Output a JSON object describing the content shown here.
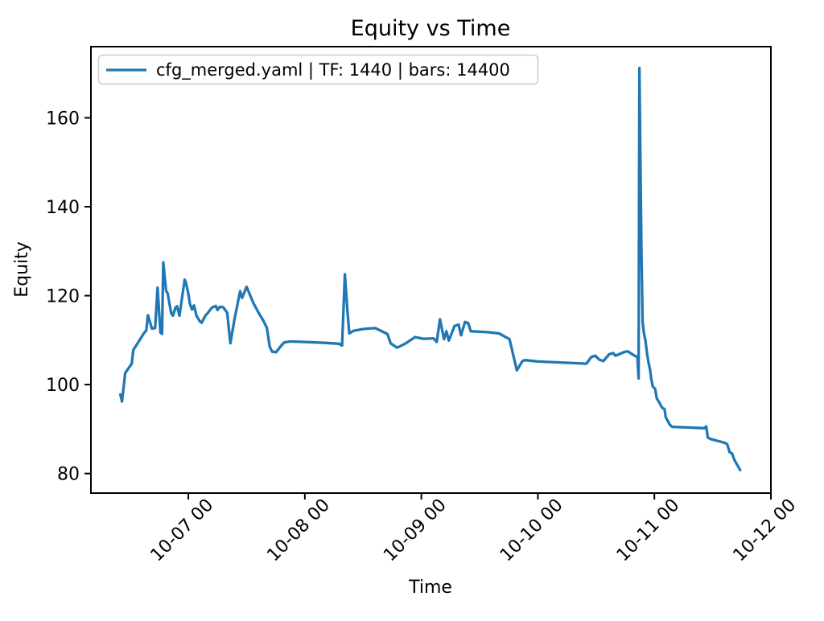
{
  "chart_data": {
    "type": "line",
    "title": "Equity vs Time",
    "xlabel": "Time",
    "ylabel": "Equity",
    "grid": false,
    "legend_position": "upper left",
    "line_color": "#1f77b4",
    "axis_color": "#000000",
    "legend_edge_color": "#cccccc",
    "background_color": "#ffffff",
    "y_ticks": [
      80,
      100,
      120,
      140,
      160
    ],
    "x_ticks": [
      {
        "t": 0,
        "label": "10-07 00"
      },
      {
        "t": 1,
        "label": "10-08 00"
      },
      {
        "t": 2,
        "label": "10-09 00"
      },
      {
        "t": 3,
        "label": "10-10 00"
      },
      {
        "t": 4,
        "label": "10-11 00"
      },
      {
        "t": 5,
        "label": "10-12 00"
      }
    ],
    "x_origin": "10-07 00:00",
    "xlim_days_from_origin": [
      -0.836,
      5.0
    ],
    "ylim": [
      75.6,
      176.0
    ],
    "series": [
      {
        "name": "cfg_merged.yaml | TF: 1440 | bars: 14400",
        "points": [
          [
            "10-06 10:00",
            97.8
          ],
          [
            "10-06 10:20",
            96.2
          ],
          [
            "10-06 11:00",
            102.6
          ],
          [
            "10-06 12:20",
            104.7
          ],
          [
            "10-06 12:40",
            107.8
          ],
          [
            "10-06 14:15",
            110.5
          ],
          [
            "10-06 14:50",
            111.5
          ],
          [
            "10-06 15:20",
            112.2
          ],
          [
            "10-06 15:40",
            115.6
          ],
          [
            "10-06 16:30",
            112.6
          ],
          [
            "10-06 17:10",
            112.7
          ],
          [
            "10-06 17:40",
            121.8
          ],
          [
            "10-06 18:15",
            111.7
          ],
          [
            "10-06 18:35",
            111.4
          ],
          [
            "10-06 18:50",
            127.5
          ],
          [
            "10-06 19:25",
            121.1
          ],
          [
            "10-06 19:45",
            120.5
          ],
          [
            "10-06 20:05",
            118.4
          ],
          [
            "10-06 20:30",
            116.0
          ],
          [
            "10-06 20:50",
            115.5
          ],
          [
            "10-06 21:20",
            117.3
          ],
          [
            "10-06 21:40",
            117.6
          ],
          [
            "10-06 22:10",
            115.5
          ],
          [
            "10-06 23:15",
            123.6
          ],
          [
            "10-06 23:30",
            123.0
          ],
          [
            "10-07 00:00",
            120.5
          ],
          [
            "10-07 00:20",
            118.1
          ],
          [
            "10-07 00:45",
            116.9
          ],
          [
            "10-07 01:10",
            117.8
          ],
          [
            "10-07 01:40",
            115.5
          ],
          [
            "10-07 02:20",
            114.3
          ],
          [
            "10-07 02:45",
            113.9
          ],
          [
            "10-07 03:30",
            115.5
          ],
          [
            "10-07 04:00",
            116.1
          ],
          [
            "10-07 04:50",
            117.3
          ],
          [
            "10-07 05:40",
            117.7
          ],
          [
            "10-07 06:00",
            116.8
          ],
          [
            "10-07 06:30",
            117.5
          ],
          [
            "10-07 07:10",
            117.4
          ],
          [
            "10-07 08:00",
            116.2
          ],
          [
            "10-07 08:40",
            109.3
          ],
          [
            "10-07 09:30",
            114.7
          ],
          [
            "10-07 10:40",
            121.0
          ],
          [
            "10-07 11:05",
            119.5
          ],
          [
            "10-07 12:00",
            122.0
          ],
          [
            "10-07 13:25",
            118.3
          ],
          [
            "10-07 14:30",
            116.1
          ],
          [
            "10-07 15:20",
            114.6
          ],
          [
            "10-07 16:10",
            112.8
          ],
          [
            "10-07 16:45",
            108.6
          ],
          [
            "10-07 17:15",
            107.4
          ],
          [
            "10-07 18:05",
            107.3
          ],
          [
            "10-07 19:00",
            108.6
          ],
          [
            "10-07 19:45",
            109.5
          ],
          [
            "10-07 21:00",
            109.7
          ],
          [
            "10-08 00:00",
            109.6
          ],
          [
            "10-08 04:00",
            109.4
          ],
          [
            "10-08 07:00",
            109.2
          ],
          [
            "10-08 07:40",
            108.8
          ],
          [
            "10-08 08:15",
            124.8
          ],
          [
            "10-08 08:45",
            116.9
          ],
          [
            "10-08 09:10",
            111.5
          ],
          [
            "10-08 10:00",
            112.1
          ],
          [
            "10-08 12:00",
            112.5
          ],
          [
            "10-08 14:30",
            112.7
          ],
          [
            "10-08 17:00",
            111.4
          ],
          [
            "10-08 17:40",
            109.3
          ],
          [
            "10-08 19:00",
            108.3
          ],
          [
            "10-08 20:40",
            109.2
          ],
          [
            "10-08 22:20",
            110.4
          ],
          [
            "10-08 22:40",
            110.7
          ],
          [
            "10-09 00:30",
            110.3
          ],
          [
            "10-09 02:30",
            110.4
          ],
          [
            "10-09 03:10",
            109.6
          ],
          [
            "10-09 03:50",
            114.7
          ],
          [
            "10-09 04:40",
            110.2
          ],
          [
            "10-09 05:10",
            112.0
          ],
          [
            "10-09 05:40",
            109.9
          ],
          [
            "10-09 06:50",
            113.2
          ],
          [
            "10-09 07:40",
            113.5
          ],
          [
            "10-09 08:10",
            111.1
          ],
          [
            "10-09 09:00",
            114.1
          ],
          [
            "10-09 09:40",
            113.8
          ],
          [
            "10-09 10:10",
            112.0
          ],
          [
            "10-09 13:30",
            111.8
          ],
          [
            "10-09 16:00",
            111.5
          ],
          [
            "10-09 18:10",
            110.2
          ],
          [
            "10-09 19:40",
            103.2
          ],
          [
            "10-09 20:50",
            105.3
          ],
          [
            "10-09 21:20",
            105.5
          ],
          [
            "10-10 00:00",
            105.2
          ],
          [
            "10-10 06:00",
            104.9
          ],
          [
            "10-10 10:00",
            104.7
          ],
          [
            "10-10 11:00",
            106.2
          ],
          [
            "10-10 11:50",
            106.5
          ],
          [
            "10-10 12:40",
            105.6
          ],
          [
            "10-10 13:30",
            105.3
          ],
          [
            "10-10 14:40",
            106.8
          ],
          [
            "10-10 15:30",
            107.1
          ],
          [
            "10-10 16:00",
            106.5
          ],
          [
            "10-10 18:00",
            107.4
          ],
          [
            "10-10 18:30",
            107.5
          ],
          [
            "10-10 19:55",
            106.5
          ],
          [
            "10-10 20:30",
            106.2
          ],
          [
            "10-10 20:45",
            101.4
          ],
          [
            "10-10 20:55",
            171.2
          ],
          [
            "10-10 21:20",
            130.0
          ],
          [
            "10-10 21:35",
            114.0
          ],
          [
            "10-10 21:50",
            111.7
          ],
          [
            "10-10 22:10",
            109.9
          ],
          [
            "10-10 22:30",
            106.8
          ],
          [
            "10-10 22:50",
            104.7
          ],
          [
            "10-10 23:05",
            103.5
          ],
          [
            "10-10 23:20",
            101.4
          ],
          [
            "10-10 23:40",
            99.6
          ],
          [
            "10-11 00:10",
            99.0
          ],
          [
            "10-11 00:30",
            96.9
          ],
          [
            "10-11 01:00",
            96.0
          ],
          [
            "10-11 01:35",
            94.8
          ],
          [
            "10-11 02:05",
            94.5
          ],
          [
            "10-11 02:20",
            92.7
          ],
          [
            "10-11 03:10",
            91.0
          ],
          [
            "10-11 03:40",
            90.5
          ],
          [
            "10-11 10:20",
            90.2
          ],
          [
            "10-11 10:40",
            90.6
          ],
          [
            "10-11 11:00",
            88.1
          ],
          [
            "10-11 11:30",
            87.8
          ],
          [
            "10-11 14:30",
            86.9
          ],
          [
            "10-11 15:00",
            86.6
          ],
          [
            "10-11 15:30",
            84.8
          ],
          [
            "10-11 16:00",
            84.5
          ],
          [
            "10-11 16:30",
            83.0
          ],
          [
            "10-11 17:40",
            80.8
          ]
        ]
      }
    ]
  }
}
